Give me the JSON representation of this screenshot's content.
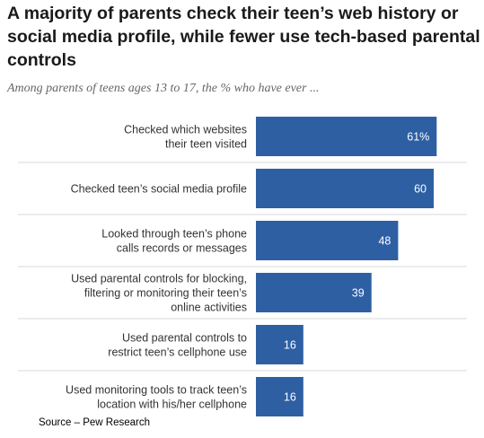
{
  "title": "A majority of parents check their teen’s web history or social media profile, while fewer use tech-based parental controls",
  "subtitle": "Among parents of teens ages 13 to 17, the % who have ever ...",
  "source": "Source – Pew Research",
  "chart_data": {
    "type": "bar",
    "orientation": "horizontal",
    "categories": [
      [
        "Checked which websites",
        "their teen visited"
      ],
      [
        "Checked teen’s social media profile"
      ],
      [
        "Looked through teen’s phone",
        "calls records or messages"
      ],
      [
        "Used parental controls for blocking,",
        "filtering or monitoring their teen’s",
        "online activities"
      ],
      [
        "Used parental controls to",
        "restrict teen’s cellphone use"
      ],
      [
        "Used monitoring tools to track teen’s",
        "location with his/her cellphone"
      ]
    ],
    "values": [
      61,
      60,
      48,
      39,
      16,
      16
    ],
    "value_labels": [
      "61%",
      "60",
      "48",
      "39",
      "16",
      "16"
    ],
    "xlim": [
      0,
      100
    ],
    "bar_color": "#2e5fa3",
    "separator_color": "#d9d9d9",
    "grid": false,
    "legend": false
  }
}
